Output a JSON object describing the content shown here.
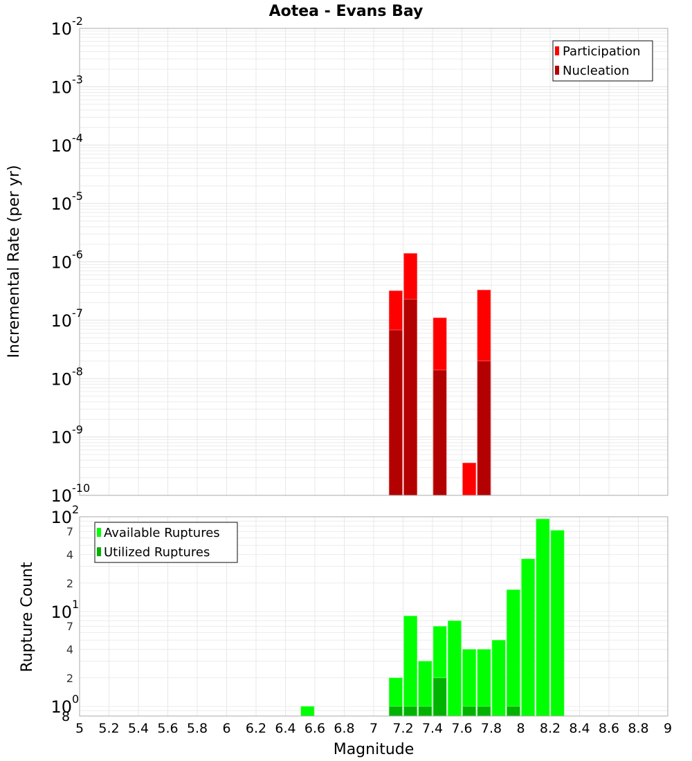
{
  "chart_data": [
    {
      "type": "bar",
      "title": "Aotea - Evans Bay",
      "xlabel": "Magnitude",
      "ylabel": "Incremental Rate (per yr)",
      "yscale": "log",
      "ylim": [
        1e-10,
        0.01
      ],
      "xlim": [
        5,
        9
      ],
      "y_ticks": [
        "10^-2",
        "10^-3",
        "10^-4",
        "10^-5",
        "10^-6",
        "10^-7",
        "10^-8",
        "10^-9",
        "10^-10"
      ],
      "grid": true,
      "legend": {
        "position": "top-right",
        "entries": [
          {
            "label": "Participation",
            "color": "#ff0000"
          },
          {
            "label": "Nucleation",
            "color": "#b30000"
          }
        ]
      },
      "bar_width": 0.1,
      "series": [
        {
          "name": "Participation",
          "color": "#ff0000",
          "x": [
            7.15,
            7.25,
            7.45,
            7.65,
            7.75
          ],
          "values": [
            3.2e-07,
            1.4e-06,
            1.1e-07,
            3.6e-10,
            3.3e-07
          ]
        },
        {
          "name": "Nucleation",
          "color": "#b30000",
          "x": [
            7.15,
            7.25,
            7.45,
            7.75
          ],
          "values": [
            6.8e-08,
            2.3e-07,
            1.4e-08,
            2e-08
          ]
        }
      ]
    },
    {
      "type": "bar",
      "xlabel": "Magnitude",
      "ylabel": "Rupture Count",
      "yscale": "log",
      "ylim": [
        0.8,
        100
      ],
      "xlim": [
        5,
        9
      ],
      "y_ticks": [
        "10^0",
        "2",
        "4",
        "7",
        "10^1",
        "2",
        "4",
        "7",
        "10^2"
      ],
      "x_ticks": [
        "5",
        "5.2",
        "5.4",
        "5.6",
        "5.8",
        "6",
        "6.2",
        "6.4",
        "6.6",
        "6.8",
        "7",
        "7.2",
        "7.4",
        "7.6",
        "7.8",
        "8",
        "8.2",
        "8.4",
        "8.6",
        "8.8",
        "9"
      ],
      "grid": true,
      "legend": {
        "position": "top-left",
        "entries": [
          {
            "label": "Available Ruptures",
            "color": "#00ff00"
          },
          {
            "label": "Utilized Ruptures",
            "color": "#00b300"
          }
        ]
      },
      "bar_width": 0.1,
      "series": [
        {
          "name": "Available Ruptures",
          "color": "#00ff00",
          "x": [
            6.55,
            7.15,
            7.25,
            7.35,
            7.45,
            7.55,
            7.65,
            7.75,
            7.85,
            7.95,
            8.05,
            8.15,
            8.25
          ],
          "values": [
            1,
            2,
            9,
            3,
            7,
            8,
            4,
            4,
            5,
            17,
            36,
            95,
            72
          ]
        },
        {
          "name": "Utilized Ruptures",
          "color": "#00b300",
          "x": [
            7.15,
            7.25,
            7.35,
            7.45,
            7.65,
            7.75,
            7.95
          ],
          "values": [
            1,
            1,
            1,
            2,
            1,
            1,
            1
          ]
        }
      ]
    }
  ],
  "labels": {
    "title": "Aotea - Evans Bay",
    "top_ylabel": "Incremental Rate (per yr)",
    "bottom_ylabel": "Rupture Count",
    "xlabel": "Magnitude",
    "top_legend": [
      "Participation",
      "Nucleation"
    ],
    "bottom_legend": [
      "Available Ruptures",
      "Utilized Ruptures"
    ],
    "bottom_extra_tick": "8"
  }
}
